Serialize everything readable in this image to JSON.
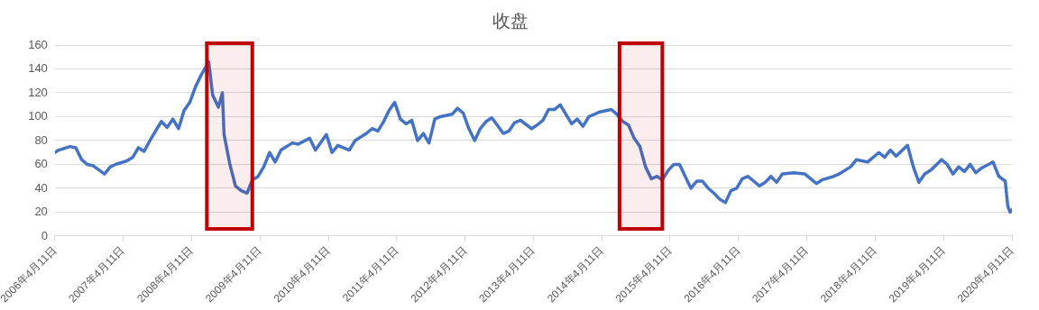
{
  "chart_data": {
    "type": "line",
    "title": "收盘",
    "x": [
      "2006-04-11",
      "2006-05",
      "2006-07",
      "2006-08",
      "2006-09",
      "2006-10",
      "2006-11",
      "2007-01",
      "2007-02",
      "2007-03",
      "2007-05",
      "2007-06",
      "2007-07",
      "2007-08",
      "2007-09",
      "2007-10",
      "2007-11",
      "2007-12",
      "2008-01",
      "2008-02",
      "2008-03",
      "2008-04",
      "2008-05",
      "2008-06",
      "2008-07-11",
      "2008-08",
      "2008-09",
      "2008-09-22",
      "2008-10",
      "2008-11",
      "2008-12",
      "2009-01",
      "2009-02",
      "2009-03",
      "2009-04",
      "2009-05",
      "2009-06",
      "2009-07",
      "2009-08",
      "2009-10",
      "2009-11",
      "2010-01",
      "2010-02",
      "2010-04",
      "2010-05",
      "2010-06",
      "2010-08",
      "2010-09",
      "2010-11",
      "2010-12",
      "2011-01",
      "2011-02",
      "2011-03",
      "2011-04",
      "2011-05",
      "2011-06",
      "2011-07",
      "2011-08",
      "2011-09",
      "2011-10",
      "2011-11",
      "2011-12",
      "2012-02",
      "2012-03",
      "2012-04",
      "2012-05",
      "2012-06",
      "2012-07",
      "2012-08",
      "2012-09",
      "2012-11",
      "2012-12",
      "2013-01",
      "2013-02",
      "2013-04",
      "2013-05",
      "2013-06",
      "2013-07",
      "2013-08",
      "2013-09",
      "2013-11",
      "2013-12",
      "2014-01",
      "2014-02",
      "2014-04",
      "2014-06",
      "2014-07",
      "2014-08",
      "2014-09",
      "2014-10",
      "2014-11",
      "2014-12",
      "2015-01",
      "2015-02",
      "2015-03",
      "2015-04",
      "2015-05",
      "2015-06",
      "2015-07",
      "2015-08",
      "2015-09",
      "2015-10",
      "2015-11",
      "2015-12",
      "2016-01",
      "2016-02",
      "2016-03",
      "2016-04",
      "2016-05",
      "2016-06",
      "2016-08",
      "2016-09",
      "2016-10",
      "2016-11",
      "2016-12",
      "2017-02",
      "2017-04",
      "2017-06",
      "2017-07",
      "2017-09",
      "2017-10",
      "2017-12",
      "2018-01",
      "2018-03",
      "2018-05",
      "2018-06",
      "2018-07",
      "2018-08",
      "2018-10",
      "2018-11",
      "2018-12",
      "2019-01",
      "2019-02",
      "2019-04",
      "2019-05",
      "2019-06",
      "2019-07",
      "2019-08",
      "2019-09",
      "2019-10",
      "2019-11",
      "2020-01",
      "2020-02",
      "2020-03-06",
      "2020-03-20",
      "2020-04-01",
      "2020-04-11"
    ],
    "series": [
      {
        "color": "#4472c4",
        "values": [
          70,
          72,
          75,
          74,
          64,
          60,
          59,
          52,
          58,
          60,
          63,
          66,
          74,
          71,
          80,
          88,
          96,
          91,
          98,
          90,
          105,
          112,
          125,
          135,
          146,
          118,
          108,
          120,
          85,
          60,
          42,
          38,
          36,
          47,
          50,
          58,
          70,
          62,
          72,
          78,
          77,
          82,
          72,
          85,
          70,
          76,
          72,
          80,
          86,
          90,
          88,
          96,
          105,
          112,
          98,
          94,
          97,
          80,
          86,
          78,
          98,
          100,
          102,
          107,
          103,
          90,
          80,
          90,
          96,
          99,
          86,
          88,
          95,
          97,
          90,
          93,
          97,
          106,
          106,
          110,
          94,
          98,
          92,
          100,
          104,
          106,
          102,
          96,
          93,
          82,
          75,
          58,
          48,
          50,
          47,
          55,
          60,
          60,
          50,
          40,
          46,
          46,
          40,
          36,
          31,
          28,
          38,
          40,
          48,
          50,
          42,
          45,
          50,
          45,
          52,
          53,
          52,
          44,
          47,
          50,
          52,
          58,
          64,
          62,
          70,
          66,
          72,
          67,
          76,
          58,
          45,
          52,
          55,
          64,
          60,
          52,
          58,
          54,
          60,
          53,
          57,
          62,
          50,
          46,
          25,
          20,
          22
        ]
      }
    ],
    "xlim": [
      "2006-04-11",
      "2020-04-11"
    ],
    "xticks": [
      {
        "value": "2006-04-11",
        "label": "2006年4月11日"
      },
      {
        "value": "2007-04-11",
        "label": "2007年4月11日"
      },
      {
        "value": "2008-04-11",
        "label": "2008年4月11日"
      },
      {
        "value": "2009-04-11",
        "label": "2009年4月11日"
      },
      {
        "value": "2010-04-11",
        "label": "2010年4月11日"
      },
      {
        "value": "2011-04-11",
        "label": "2011年4月11日"
      },
      {
        "value": "2012-04-11",
        "label": "2012年4月11日"
      },
      {
        "value": "2013-04-11",
        "label": "2013年4月11日"
      },
      {
        "value": "2014-04-11",
        "label": "2014年4月11日"
      },
      {
        "value": "2015-04-11",
        "label": "2015年4月11日"
      },
      {
        "value": "2016-04-11",
        "label": "2016年4月11日"
      },
      {
        "value": "2017-04-11",
        "label": "2017年4月11日"
      },
      {
        "value": "2018-04-11",
        "label": "2018年4月11日"
      },
      {
        "value": "2019-04-11",
        "label": "2019年4月11日"
      },
      {
        "value": "2020-04-11",
        "label": "2020年4月11日"
      }
    ],
    "ylim": [
      0,
      160
    ],
    "yticks": [
      0,
      20,
      40,
      60,
      80,
      100,
      120,
      140,
      160
    ],
    "grid": "y",
    "marker": "none",
    "line_style": "solid",
    "legend": false,
    "bands": [
      {
        "axis": "x",
        "from": "2008-07",
        "to": "2009-03",
        "color": "#c00000"
      },
      {
        "axis": "x",
        "from": "2014-07-15",
        "to": "2015-03",
        "color": "#c00000"
      }
    ]
  }
}
